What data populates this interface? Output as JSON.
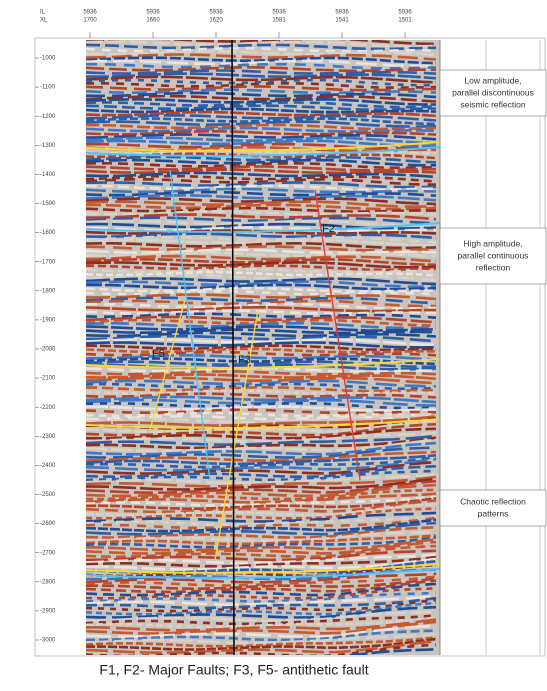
{
  "header": {
    "il_label": "IL",
    "xl_label": "XL",
    "top_ticks": [
      [
        "5936",
        "1700"
      ],
      [
        "5936",
        "1660"
      ],
      [
        "5936",
        "1620"
      ],
      [
        "5936",
        "1581"
      ],
      [
        "5936",
        "1541"
      ],
      [
        "5936",
        "1501"
      ]
    ]
  },
  "depth_labels": [
    "-1000",
    "-1100",
    "-1200",
    "-1300",
    "-1400",
    "-1500",
    "-1600",
    "-1700",
    "-1800",
    "-1900",
    "-2000",
    "-2100",
    "-2200",
    "-2300",
    "-2400",
    "-2500",
    "-2600",
    "-2700",
    "-2800",
    "-2900",
    "-3000"
  ],
  "annotations": [
    {
      "lines": [
        "Low amplitude,",
        "parallel discontinuous",
        "seismic reflection"
      ]
    },
    {
      "lines": [
        "High amplitude,",
        "parallel continuous",
        "reflection"
      ]
    },
    {
      "lines": [
        "Chaotic reflection",
        "patterns"
      ]
    }
  ],
  "faults": [
    "F2",
    "F5",
    "F3"
  ],
  "caption": "F1, F2- Major Faults; F3, F5- antithetic fault"
}
